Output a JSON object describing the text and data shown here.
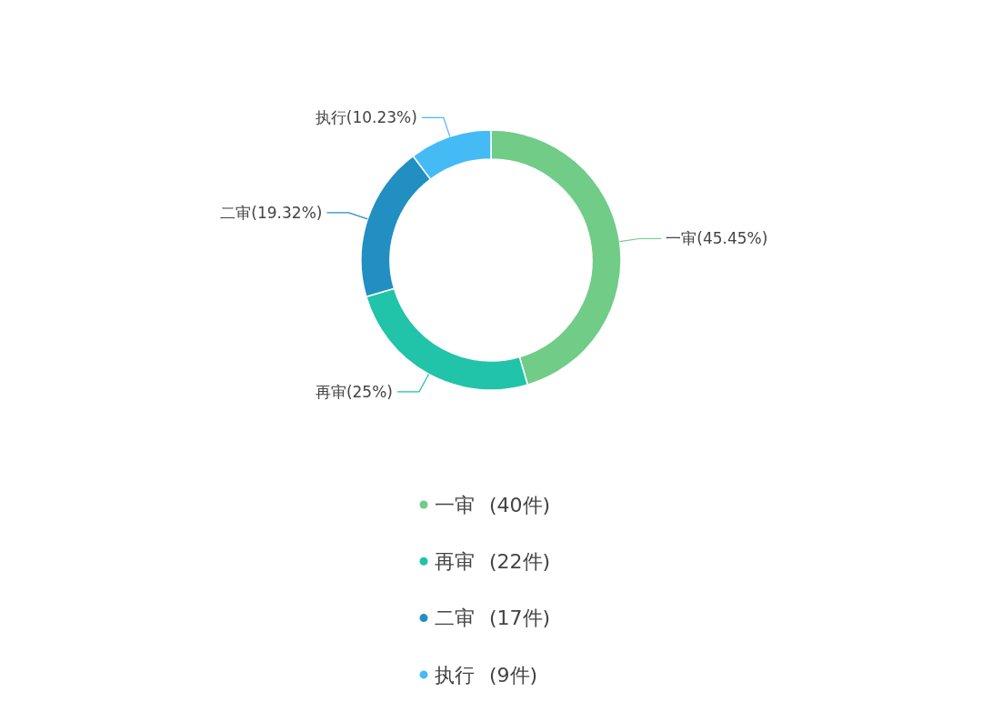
{
  "chart_data": {
    "type": "donut",
    "categories": [
      "一审",
      "再审",
      "二审",
      "执行"
    ],
    "values": [
      45.45,
      25,
      19.32,
      10.23
    ],
    "colors": [
      "#70cc87",
      "#21c3a9",
      "#228fc2",
      "#44bbf5"
    ],
    "value_labels": [
      "(45.45%)",
      "(25%)",
      "(19.32%)",
      "(10.23%)"
    ],
    "legend": "bottom",
    "annotations": [
      "(40件)",
      "(22件)",
      "(17件)",
      "(9件)"
    ]
  }
}
